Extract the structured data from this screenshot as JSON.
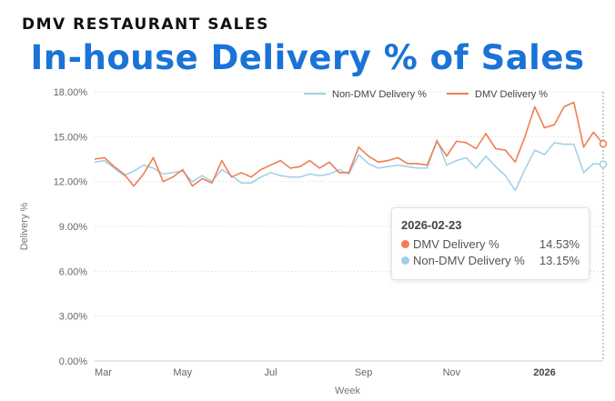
{
  "header": {
    "label": "DMV RESTAURANT SALES"
  },
  "title": "In-house Delivery % of Sales",
  "chart_data": {
    "type": "line",
    "title": "In-house Delivery % of Sales",
    "xlabel": "Week",
    "ylabel": "Delivery %",
    "ylim": [
      0,
      18
    ],
    "y_ticks": [
      0,
      3,
      6,
      9,
      12,
      15,
      18
    ],
    "y_tick_labels": [
      "0.00%",
      "3.00%",
      "6.00%",
      "9.00%",
      "12.00%",
      "15.00%",
      "18.00%"
    ],
    "x_tick_labels": [
      {
        "label": "Mar",
        "week": 0,
        "bold": false
      },
      {
        "label": "May",
        "week": 9,
        "bold": false
      },
      {
        "label": "Jul",
        "week": 18,
        "bold": false
      },
      {
        "label": "Sep",
        "week": 27.5,
        "bold": false
      },
      {
        "label": "Nov",
        "week": 36.5,
        "bold": false
      },
      {
        "label": "2026",
        "week": 46,
        "bold": true
      }
    ],
    "legend_position": "top-right",
    "grid": true,
    "series": [
      {
        "name": "Non-DMV Delivery %",
        "color": "#9fcfe8",
        "values": [
          13.3,
          13.4,
          12.9,
          12.4,
          12.7,
          13.1,
          12.9,
          12.5,
          12.6,
          12.7,
          12.0,
          12.4,
          12.0,
          12.8,
          12.4,
          11.9,
          11.9,
          12.3,
          12.6,
          12.4,
          12.3,
          12.3,
          12.5,
          12.4,
          12.5,
          12.8,
          12.5,
          13.8,
          13.2,
          12.9,
          13.0,
          13.1,
          13.0,
          12.9,
          12.9,
          14.8,
          13.1,
          13.4,
          13.6,
          12.9,
          13.7,
          13.0,
          12.4,
          11.4,
          12.8,
          14.1,
          13.8,
          14.6,
          14.5,
          14.5,
          12.6,
          13.2,
          13.15
        ]
      },
      {
        "name": "DMV Delivery %",
        "color": "#f07e52",
        "values": [
          13.5,
          13.6,
          13.0,
          12.5,
          11.7,
          12.5,
          13.6,
          12.0,
          12.3,
          12.8,
          11.7,
          12.2,
          11.9,
          13.4,
          12.3,
          12.6,
          12.3,
          12.8,
          13.1,
          13.4,
          12.9,
          13.0,
          13.4,
          12.9,
          13.3,
          12.6,
          12.6,
          14.3,
          13.7,
          13.3,
          13.4,
          13.6,
          13.2,
          13.2,
          13.1,
          14.7,
          13.7,
          14.7,
          14.6,
          14.2,
          15.2,
          14.2,
          14.1,
          13.3,
          15.0,
          17.0,
          15.6,
          15.8,
          17.0,
          17.3,
          14.3,
          15.3,
          14.53
        ]
      }
    ],
    "tooltip": {
      "date": "2026-02-23",
      "rows": [
        {
          "name": "DMV Delivery %",
          "value": "14.53%",
          "color": "#f07e52"
        },
        {
          "name": "Non-DMV Delivery %",
          "value": "13.15%",
          "color": "#9fcfe8"
        }
      ]
    }
  }
}
